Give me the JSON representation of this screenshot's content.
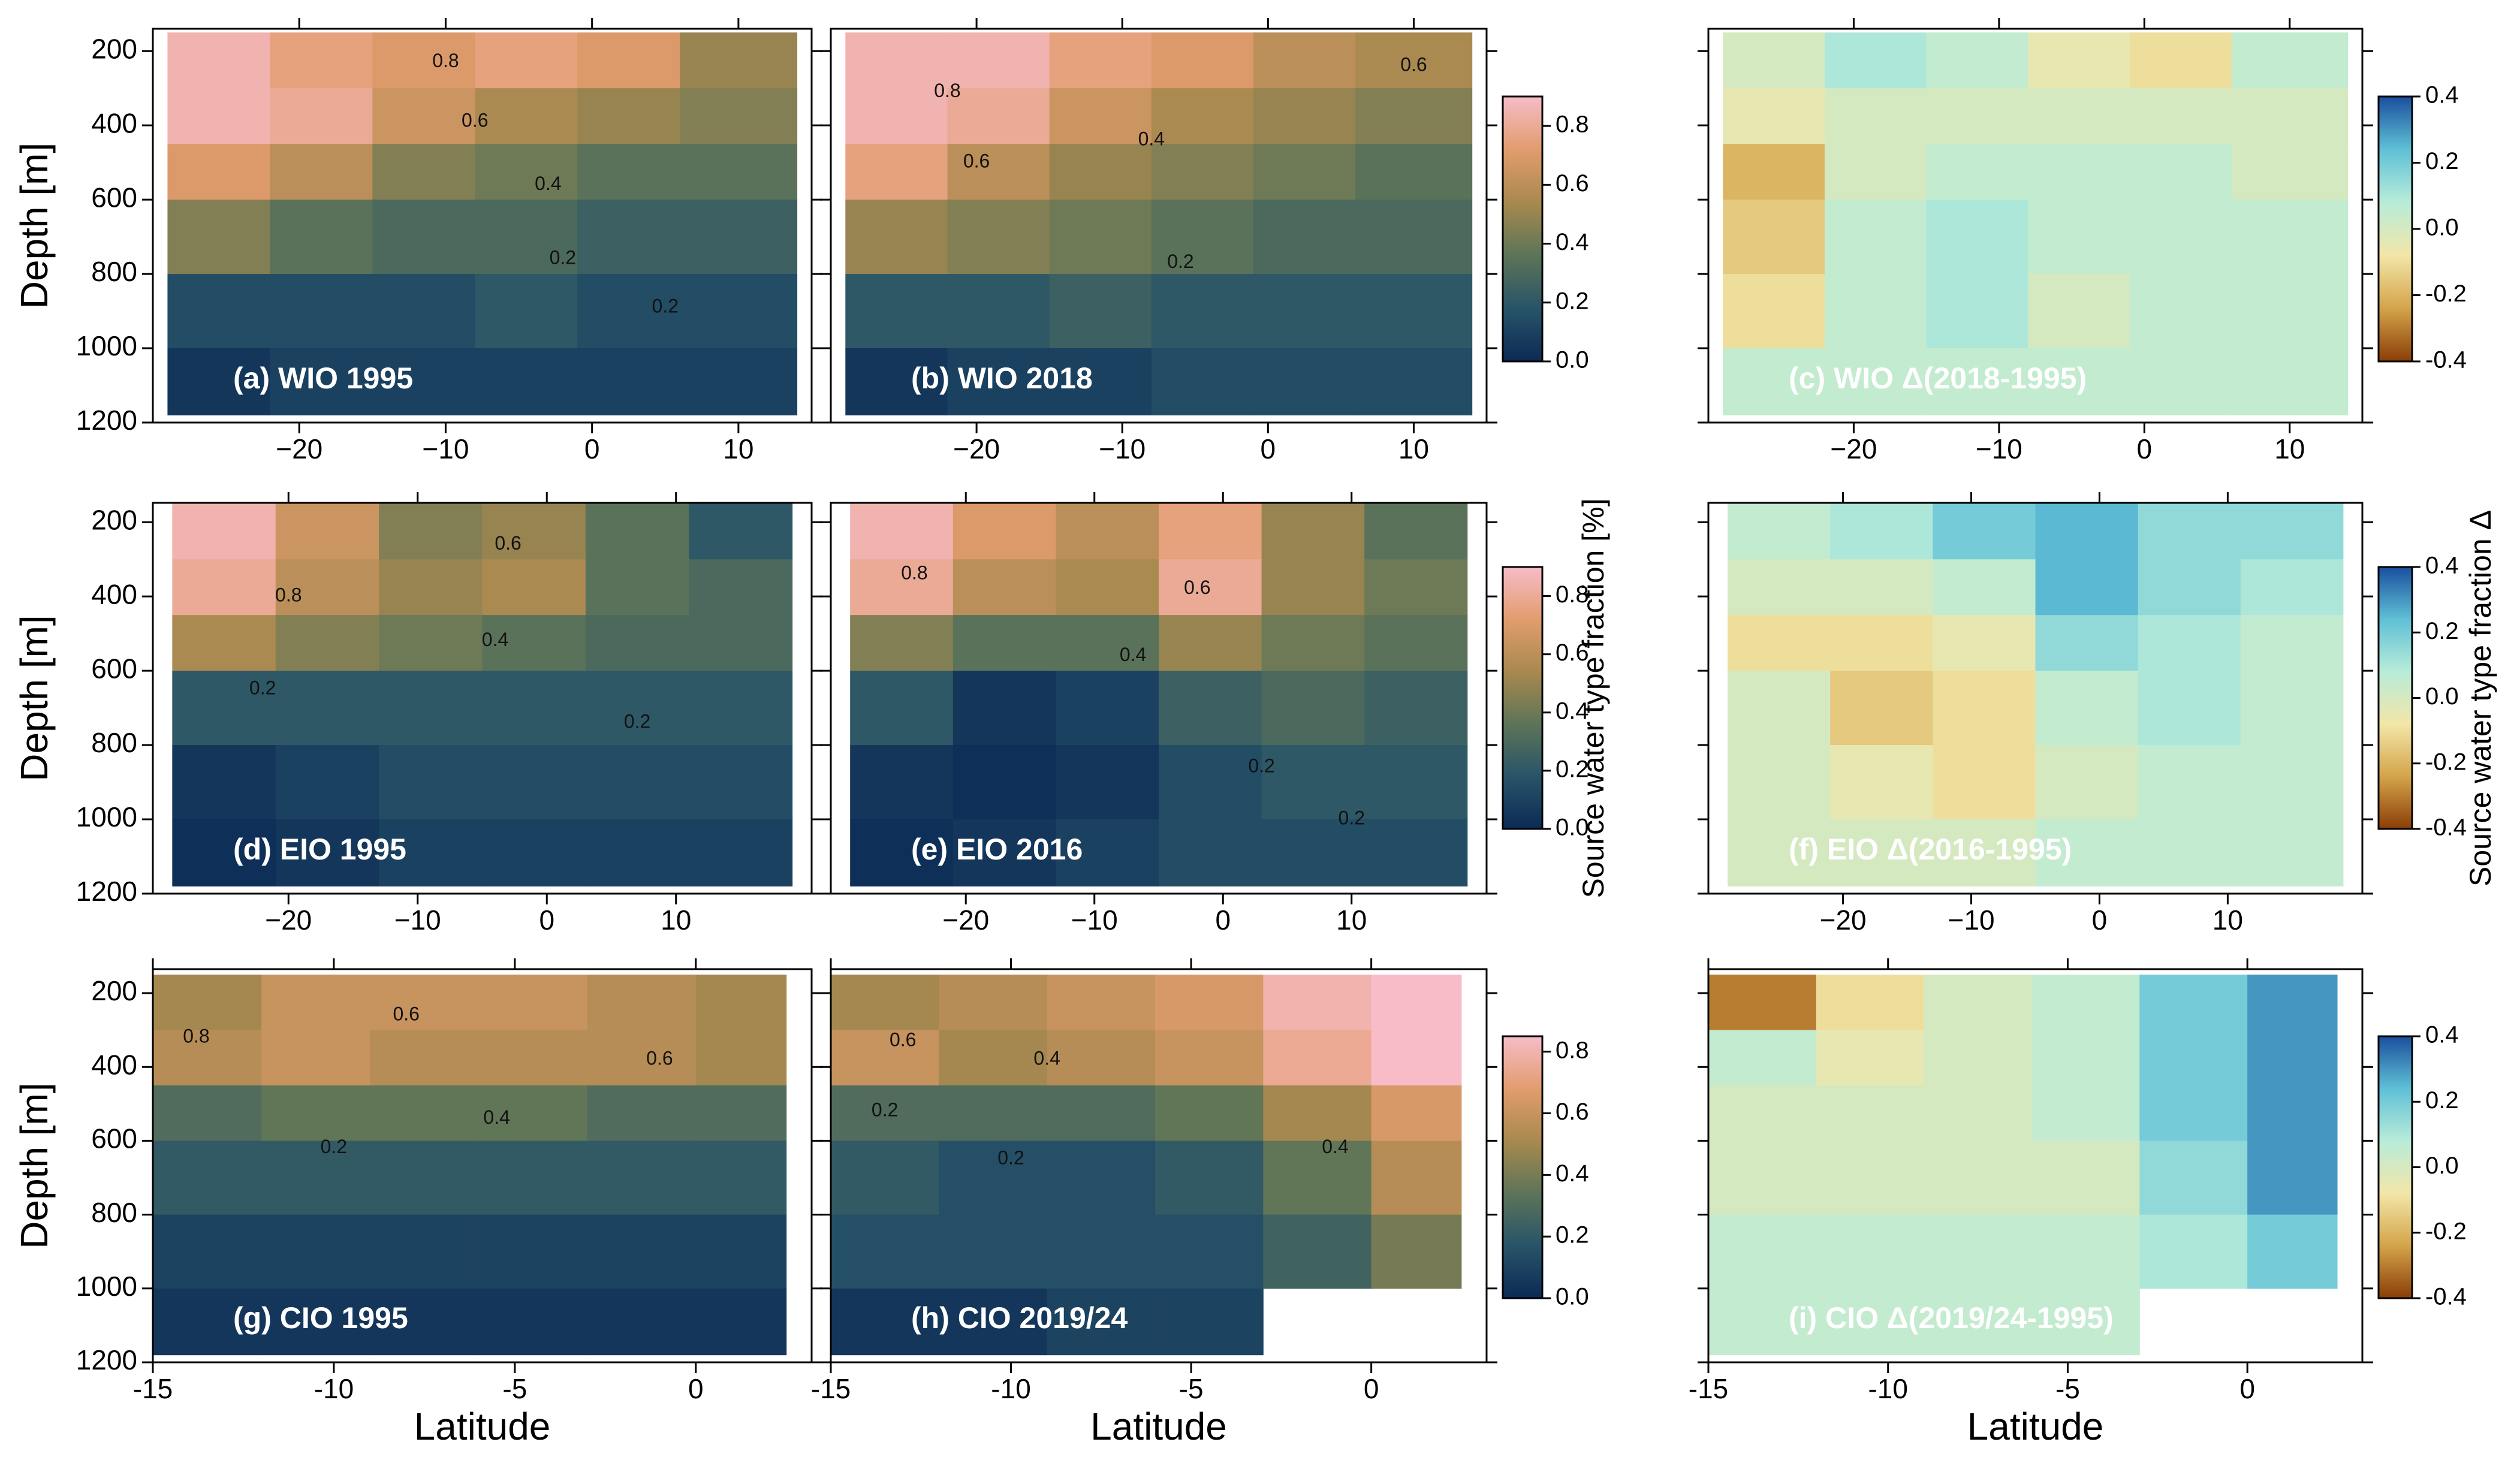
{
  "chart_data": [
    {
      "type": "heatmap",
      "title": "(a) WIO 1995",
      "ylabel": "Depth [m]",
      "xlim": [
        -30,
        15
      ],
      "ylim": [
        1200,
        140
      ],
      "xticks": [
        {
          "value": -20,
          "label": "−20"
        },
        {
          "value": -10,
          "label": "−10"
        },
        0,
        10
      ],
      "yticks": [
        200,
        400,
        600,
        800,
        1000,
        1200
      ],
      "ytick_labels": true,
      "x_edges": [
        -29,
        -22,
        -15,
        -8,
        -1,
        6,
        14
      ],
      "y_edges": [
        150,
        300,
        450,
        600,
        800,
        1000,
        1180
      ],
      "z": [
        [
          0.85,
          0.75,
          0.7,
          0.75,
          0.7,
          0.5
        ],
        [
          0.85,
          0.8,
          0.65,
          0.55,
          0.5,
          0.45
        ],
        [
          0.7,
          0.6,
          0.45,
          0.4,
          0.35,
          0.35
        ],
        [
          0.45,
          0.35,
          0.3,
          0.3,
          0.25,
          0.25
        ],
        [
          0.15,
          0.15,
          0.15,
          0.2,
          0.15,
          0.15
        ],
        [
          0.05,
          0.1,
          0.1,
          0.1,
          0.1,
          0.1
        ]
      ],
      "clim": [
        0,
        0.9
      ],
      "colormap": [
        "#0b2a55",
        "#285468",
        "#5d7458",
        "#a8894f",
        "#e29c6e",
        "#f7bcc8"
      ],
      "contour_labels": [
        {
          "text": "0.8",
          "x": -10,
          "y": 230
        },
        {
          "text": "0.6",
          "x": -8,
          "y": 390
        },
        {
          "text": "0.4",
          "x": -3,
          "y": 560
        },
        {
          "text": "0.2",
          "x": -2,
          "y": 760
        },
        {
          "text": "0.2",
          "x": 5,
          "y": 890
        }
      ]
    },
    {
      "type": "heatmap",
      "title": "(b) WIO 2018",
      "xlim": [
        -30,
        15
      ],
      "ylim": [
        1200,
        140
      ],
      "xticks": [
        {
          "value": -20,
          "label": "−20"
        },
        {
          "value": -10,
          "label": "−10"
        },
        0,
        10
      ],
      "yticks": [
        200,
        400,
        600,
        800,
        1000,
        1200
      ],
      "ytick_labels": false,
      "x_edges": [
        -29,
        -22,
        -15,
        -8,
        -1,
        6,
        14
      ],
      "y_edges": [
        150,
        300,
        450,
        600,
        800,
        1000,
        1180
      ],
      "z": [
        [
          0.85,
          0.85,
          0.75,
          0.7,
          0.6,
          0.55
        ],
        [
          0.85,
          0.8,
          0.65,
          0.55,
          0.5,
          0.45
        ],
        [
          0.75,
          0.6,
          0.5,
          0.45,
          0.4,
          0.35
        ],
        [
          0.5,
          0.45,
          0.4,
          0.35,
          0.3,
          0.3
        ],
        [
          0.2,
          0.2,
          0.25,
          0.2,
          0.2,
          0.2
        ],
        [
          0.05,
          0.1,
          0.1,
          0.15,
          0.15,
          0.15
        ]
      ],
      "clim": [
        0,
        0.9
      ],
      "colormap": [
        "#0b2a55",
        "#285468",
        "#5d7458",
        "#a8894f",
        "#e29c6e",
        "#f7bcc8"
      ],
      "cticks": [
        {
          "value": 0,
          "label": "0.0"
        },
        0.2,
        0.4,
        0.6,
        0.8
      ],
      "contour_labels": [
        {
          "text": "0.8",
          "x": -22,
          "y": 310
        },
        {
          "text": "0.6",
          "x": -20,
          "y": 500
        },
        {
          "text": "0.4",
          "x": -8,
          "y": 440
        },
        {
          "text": "0.2",
          "x": -6,
          "y": 770
        },
        {
          "text": "0.6",
          "x": 10,
          "y": 240
        }
      ]
    },
    {
      "type": "heatmap",
      "title": "(c) WIO Δ(2018-1995)",
      "xlim": [
        -30,
        15
      ],
      "ylim": [
        1200,
        140
      ],
      "xticks": [
        {
          "value": -20,
          "label": "−20"
        },
        {
          "value": -10,
          "label": "−10"
        },
        0,
        10
      ],
      "yticks": [
        200,
        400,
        600,
        800,
        1000,
        1200
      ],
      "ytick_labels": false,
      "x_edges": [
        -29,
        -22,
        -15,
        -8,
        -1,
        6,
        14
      ],
      "y_edges": [
        150,
        300,
        450,
        600,
        800,
        1000,
        1180
      ],
      "z": [
        [
          0,
          0.1,
          0.05,
          -0.05,
          -0.1,
          0.05
        ],
        [
          -0.05,
          0,
          0,
          0,
          0,
          0
        ],
        [
          -0.2,
          0,
          0.05,
          0.05,
          0.05,
          0
        ],
        [
          -0.15,
          0.05,
          0.1,
          0.05,
          0.05,
          0.05
        ],
        [
          -0.1,
          0.05,
          0.1,
          0,
          0.05,
          0.05
        ],
        [
          0.05,
          0.05,
          0.05,
          0.05,
          0.05,
          0.05
        ]
      ],
      "clim": [
        -0.4,
        0.4
      ],
      "colormap": [
        "#8a3d07",
        "#d4a44a",
        "#f2e6a8",
        "#b8ecd9",
        "#5fc0d6",
        "#1a4f9e"
      ],
      "cticks": [
        -0.4,
        -0.2,
        {
          "value": 0,
          "label": "0.0"
        },
        0.2,
        0.4
      ]
    },
    {
      "type": "heatmap",
      "title": "(d) EIO 1995",
      "ylabel": "Depth [m]",
      "xlim": [
        -30.5,
        20.5
      ],
      "ylim": [
        1200,
        148
      ],
      "xticks": [
        {
          "value": -20,
          "label": "−20"
        },
        {
          "value": -10,
          "label": "−10"
        },
        0,
        10
      ],
      "yticks": [
        200,
        400,
        600,
        800,
        1000,
        1200
      ],
      "ytick_labels": true,
      "x_edges": [
        -29,
        -21,
        -13,
        -5,
        3,
        11,
        19
      ],
      "y_edges": [
        150,
        300,
        450,
        600,
        800,
        1000,
        1180
      ],
      "z": [
        [
          0.85,
          0.65,
          0.45,
          0.5,
          0.35,
          0.2
        ],
        [
          0.8,
          0.6,
          0.5,
          0.55,
          0.35,
          0.3
        ],
        [
          0.55,
          0.45,
          0.4,
          0.35,
          0.3,
          0.3
        ],
        [
          0.2,
          0.2,
          0.2,
          0.2,
          0.2,
          0.2
        ],
        [
          0.05,
          0.1,
          0.15,
          0.15,
          0.15,
          0.15
        ],
        [
          0.02,
          0.05,
          0.1,
          0.1,
          0.1,
          0.1
        ]
      ],
      "clim": [
        0,
        0.9
      ],
      "colormap": [
        "#0b2a55",
        "#285468",
        "#5d7458",
        "#a8894f",
        "#e29c6e",
        "#f7bcc8"
      ],
      "contour_labels": [
        {
          "text": "0.8",
          "x": -20,
          "y": 400
        },
        {
          "text": "0.6",
          "x": -3,
          "y": 260
        },
        {
          "text": "0.4",
          "x": -4,
          "y": 520
        },
        {
          "text": "0.2",
          "x": -22,
          "y": 650
        },
        {
          "text": "0.2",
          "x": 7,
          "y": 740
        }
      ]
    },
    {
      "type": "heatmap",
      "title": "(e) EIO 2016",
      "xlim": [
        -30.5,
        20.5
      ],
      "ylim": [
        1200,
        148
      ],
      "xticks": [
        {
          "value": -20,
          "label": "−20"
        },
        {
          "value": -10,
          "label": "−10"
        },
        0,
        10
      ],
      "yticks": [
        200,
        400,
        600,
        800,
        1000,
        1200
      ],
      "ytick_labels": false,
      "x_edges": [
        -29,
        -21,
        -13,
        -5,
        3,
        11,
        19
      ],
      "y_edges": [
        150,
        300,
        450,
        600,
        800,
        1000,
        1180
      ],
      "z": [
        [
          0.85,
          0.7,
          0.6,
          0.75,
          0.5,
          0.35
        ],
        [
          0.8,
          0.6,
          0.55,
          0.8,
          0.5,
          0.4
        ],
        [
          0.45,
          0.35,
          0.35,
          0.5,
          0.4,
          0.35
        ],
        [
          0.2,
          0.05,
          0.1,
          0.25,
          0.3,
          0.25
        ],
        [
          0.05,
          0.02,
          0.05,
          0.15,
          0.2,
          0.2
        ],
        [
          0.02,
          0.05,
          0.1,
          0.15,
          0.15,
          0.15
        ]
      ],
      "clim": [
        0,
        0.9
      ],
      "colormap": [
        "#0b2a55",
        "#285468",
        "#5d7458",
        "#a8894f",
        "#e29c6e",
        "#f7bcc8"
      ],
      "cticks": [
        {
          "value": 0,
          "label": "0.0"
        },
        0.2,
        0.4,
        0.6,
        0.8
      ],
      "colorbar_label": "Source water type fraction [%]",
      "contour_labels": [
        {
          "text": "0.8",
          "x": -24,
          "y": 340
        },
        {
          "text": "0.6",
          "x": -2,
          "y": 380
        },
        {
          "text": "0.4",
          "x": -7,
          "y": 560
        },
        {
          "text": "0.2",
          "x": 3,
          "y": 860
        },
        {
          "text": "0.2",
          "x": 10,
          "y": 1000
        }
      ]
    },
    {
      "type": "heatmap",
      "title": "(f) EIO Δ(2016-1995)",
      "xlim": [
        -30.5,
        20.5
      ],
      "ylim": [
        1200,
        148
      ],
      "xticks": [
        {
          "value": -20,
          "label": "−20"
        },
        {
          "value": -10,
          "label": "−10"
        },
        0,
        10
      ],
      "yticks": [
        200,
        400,
        600,
        800,
        1000,
        1200
      ],
      "ytick_labels": false,
      "x_edges": [
        -29,
        -21,
        -13,
        -5,
        3,
        11,
        19
      ],
      "y_edges": [
        150,
        300,
        450,
        600,
        800,
        1000,
        1180
      ],
      "z": [
        [
          0.05,
          0.1,
          0.2,
          0.25,
          0.15,
          0.15
        ],
        [
          0,
          0,
          0.05,
          0.25,
          0.15,
          0.1
        ],
        [
          -0.1,
          -0.1,
          -0.05,
          0.15,
          0.1,
          0.05
        ],
        [
          0,
          -0.15,
          -0.1,
          0.05,
          0.1,
          0.05
        ],
        [
          0,
          -0.05,
          -0.1,
          0,
          0.05,
          0.05
        ],
        [
          0,
          0,
          0,
          0.05,
          0.05,
          0.05
        ]
      ],
      "clim": [
        -0.4,
        0.4
      ],
      "colormap": [
        "#8a3d07",
        "#d4a44a",
        "#f2e6a8",
        "#b8ecd9",
        "#5fc0d6",
        "#1a4f9e"
      ],
      "cticks": [
        -0.4,
        -0.2,
        {
          "value": 0,
          "label": "0.0"
        },
        0.2,
        0.4
      ],
      "colorbar_label": "Source water type fraction Δ"
    },
    {
      "type": "heatmap",
      "title": "(g) CIO 1995",
      "ylabel": "Depth [m]",
      "xlabel": "Latitude",
      "xlim": [
        -15,
        3.2
      ],
      "ylim": [
        1200,
        135
      ],
      "xticks": [
        -15,
        -10,
        -5,
        0
      ],
      "yticks": [
        200,
        400,
        600,
        800,
        1000,
        1200
      ],
      "ytick_labels": true,
      "x_edges": [
        -15,
        -12,
        -9,
        -6,
        -3,
        0,
        2.5
      ],
      "y_edges": [
        150,
        300,
        450,
        600,
        800,
        1000,
        1180
      ],
      "z": [
        [
          0.5,
          0.6,
          0.6,
          0.6,
          0.55,
          0.5
        ],
        [
          0.55,
          0.6,
          0.55,
          0.55,
          0.55,
          0.5
        ],
        [
          0.3,
          0.35,
          0.35,
          0.35,
          0.3,
          0.3
        ],
        [
          0.2,
          0.2,
          0.2,
          0.2,
          0.2,
          0.2
        ],
        [
          0.1,
          0.1,
          0.1,
          0.1,
          0.1,
          0.1
        ],
        [
          0.05,
          0.05,
          0.05,
          0.05,
          0.05,
          0.05
        ]
      ],
      "clim": [
        0,
        0.85
      ],
      "colormap": [
        "#0b2a55",
        "#285468",
        "#5d7458",
        "#a8894f",
        "#e29c6e",
        "#f7bcc8"
      ],
      "contour_labels": [
        {
          "text": "0.8",
          "x": -13.8,
          "y": 320
        },
        {
          "text": "0.6",
          "x": -8,
          "y": 260
        },
        {
          "text": "0.4",
          "x": -5.5,
          "y": 540
        },
        {
          "text": "0.2",
          "x": -10,
          "y": 620
        },
        {
          "text": "0.6",
          "x": -1,
          "y": 380
        }
      ]
    },
    {
      "type": "heatmap",
      "title": "(h) CIO 2019/24",
      "xlabel": "Latitude",
      "xlim": [
        -15,
        3.2
      ],
      "ylim": [
        1200,
        135
      ],
      "xticks": [
        -15,
        -10,
        -5,
        0
      ],
      "yticks": [
        200,
        400,
        600,
        800,
        1000,
        1200
      ],
      "ytick_labels": false,
      "x_edges": [
        -15,
        -12,
        -9,
        -6,
        -3,
        0,
        2.5
      ],
      "y_edges": [
        150,
        300,
        450,
        600,
        800,
        1000,
        1180
      ],
      "z": [
        [
          0.5,
          0.55,
          0.6,
          0.65,
          0.8,
          0.85
        ],
        [
          0.6,
          0.5,
          0.55,
          0.6,
          0.75,
          0.85
        ],
        [
          0.3,
          0.3,
          0.3,
          0.35,
          0.5,
          0.65
        ],
        [
          0.2,
          0.15,
          0.15,
          0.2,
          0.35,
          0.55
        ],
        [
          0.15,
          0.15,
          0.15,
          0.15,
          0.25,
          0.4
        ],
        [
          0.05,
          0.05,
          0.1,
          0.1,
          null,
          null
        ]
      ],
      "clim": [
        0,
        0.85
      ],
      "colormap": [
        "#0b2a55",
        "#285468",
        "#5d7458",
        "#a8894f",
        "#e29c6e",
        "#f7bcc8"
      ],
      "cticks": [
        {
          "value": 0,
          "label": "0.0"
        },
        0.2,
        0.4,
        0.6,
        0.8
      ],
      "contour_labels": [
        {
          "text": "0.6",
          "x": -13,
          "y": 330
        },
        {
          "text": "0.4",
          "x": -9,
          "y": 380
        },
        {
          "text": "0.2",
          "x": -13.5,
          "y": 520
        },
        {
          "text": "0.2",
          "x": -10,
          "y": 650
        },
        {
          "text": "0.4",
          "x": -1,
          "y": 620
        }
      ]
    },
    {
      "type": "heatmap",
      "title": "(i) CIO Δ(2019/24-1995)",
      "xlabel": "Latitude",
      "xlim": [
        -15,
        3.2
      ],
      "ylim": [
        1200,
        135
      ],
      "xticks": [
        -15,
        -10,
        -5,
        0
      ],
      "yticks": [
        200,
        400,
        600,
        800,
        1000,
        1200
      ],
      "ytick_labels": false,
      "x_edges": [
        -15,
        -12,
        -9,
        -6,
        -3,
        0,
        2.5
      ],
      "y_edges": [
        150,
        300,
        450,
        600,
        800,
        1000,
        1180
      ],
      "z": [
        [
          -0.3,
          -0.1,
          0,
          0.05,
          0.2,
          0.3
        ],
        [
          0.05,
          -0.05,
          0,
          0.05,
          0.2,
          0.3
        ],
        [
          0,
          0,
          0,
          0.05,
          0.2,
          0.3
        ],
        [
          0,
          0,
          0,
          0,
          0.15,
          0.3
        ],
        [
          0.05,
          0.05,
          0.05,
          0.05,
          0.1,
          0.2
        ],
        [
          0.05,
          0.05,
          0.05,
          0.05,
          null,
          null
        ]
      ],
      "clim": [
        -0.4,
        0.4
      ],
      "colormap": [
        "#8a3d07",
        "#d4a44a",
        "#f2e6a8",
        "#b8ecd9",
        "#5fc0d6",
        "#1a4f9e"
      ],
      "cticks": [
        -0.4,
        -0.2,
        {
          "value": 0,
          "label": "0.0"
        },
        0.2,
        0.4
      ]
    }
  ]
}
